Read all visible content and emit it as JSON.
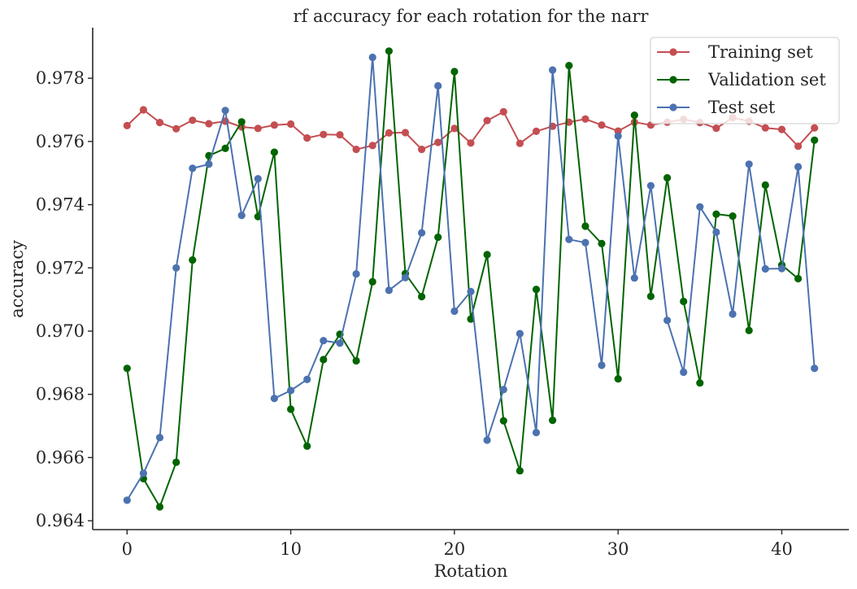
{
  "chart_data": {
    "type": "line",
    "title": "rf accuracy for each rotation for the narr",
    "xlabel": "Rotation",
    "ylabel": "accuracy",
    "xlim": [
      -2.1,
      44.1
    ],
    "ylim": [
      0.96372,
      0.9796
    ],
    "xticks": [
      0,
      10,
      20,
      30,
      40
    ],
    "yticks": [
      0.964,
      0.966,
      0.968,
      0.97,
      0.972,
      0.974,
      0.976,
      0.978
    ],
    "ytick_labels": [
      "0.964",
      "0.966",
      "0.968",
      "0.970",
      "0.972",
      "0.974",
      "0.976",
      "0.978"
    ],
    "grid": false,
    "legend_position": "top-right",
    "x": [
      0,
      1,
      2,
      3,
      4,
      5,
      6,
      7,
      8,
      9,
      10,
      11,
      12,
      13,
      14,
      15,
      16,
      17,
      18,
      19,
      20,
      21,
      22,
      23,
      24,
      25,
      26,
      27,
      28,
      29,
      30,
      31,
      32,
      33,
      34,
      35,
      36,
      37,
      38,
      39,
      40,
      41,
      42
    ],
    "series": [
      {
        "name": "Training set",
        "color": "#c44e52",
        "values": [
          0.9765,
          0.977,
          0.9766,
          0.9764,
          0.97667,
          0.97656,
          0.97664,
          0.97646,
          0.97641,
          0.97652,
          0.97655,
          0.97611,
          0.97622,
          0.97621,
          0.97575,
          0.97587,
          0.97627,
          0.97628,
          0.97575,
          0.97597,
          0.97641,
          0.97595,
          0.97666,
          0.97694,
          0.97594,
          0.97632,
          0.97648,
          0.97661,
          0.97671,
          0.97652,
          0.97633,
          0.97661,
          0.97652,
          0.97661,
          0.9767,
          0.9766,
          0.97642,
          0.97675,
          0.97664,
          0.97643,
          0.97638,
          0.97585,
          0.97643
        ]
      },
      {
        "name": "Validation set",
        "color": "#006400",
        "values": [
          0.96882,
          0.96533,
          0.96444,
          0.96585,
          0.97225,
          0.97555,
          0.97578,
          0.97662,
          0.97362,
          0.97566,
          0.96753,
          0.96636,
          0.9691,
          0.9699,
          0.96906,
          0.97156,
          0.97886,
          0.97182,
          0.97109,
          0.97297,
          0.97821,
          0.97038,
          0.97242,
          0.96716,
          0.96558,
          0.97132,
          0.96718,
          0.9784,
          0.97332,
          0.97277,
          0.96849,
          0.97683,
          0.9711,
          0.97485,
          0.97094,
          0.96836,
          0.9737,
          0.97364,
          0.97002,
          0.97462,
          0.97209,
          0.97166,
          0.97604
        ]
      },
      {
        "name": "Test set",
        "color": "#4c72b0",
        "values": [
          0.96465,
          0.9655,
          0.96663,
          0.972,
          0.97515,
          0.97528,
          0.97698,
          0.97366,
          0.97482,
          0.96787,
          0.96812,
          0.96847,
          0.9697,
          0.96962,
          0.97181,
          0.97866,
          0.97129,
          0.97169,
          0.97311,
          0.97776,
          0.97063,
          0.97125,
          0.96655,
          0.96815,
          0.96992,
          0.96679,
          0.97826,
          0.9729,
          0.9728,
          0.96892,
          0.97617,
          0.97168,
          0.9746,
          0.97034,
          0.9687,
          0.97393,
          0.97313,
          0.97054,
          0.97528,
          0.97197,
          0.97198,
          0.9752,
          0.96882
        ]
      }
    ]
  }
}
